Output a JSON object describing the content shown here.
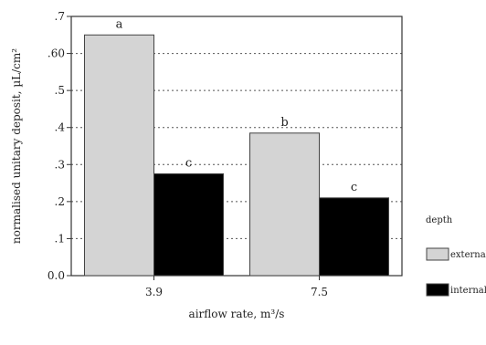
{
  "chart_data": {
    "type": "bar",
    "title": "",
    "xlabel": "airflow rate, m³/s",
    "ylabel": "normalised unitary deposit, µL/cm²",
    "categories": [
      "3.9",
      "7.5"
    ],
    "ylim": [
      0,
      0.7
    ],
    "yticks": [
      {
        "value": 0.0,
        "label": "0.0"
      },
      {
        "value": 0.1,
        "label": ".1"
      },
      {
        "value": 0.2,
        "label": ".2"
      },
      {
        "value": 0.3,
        "label": ".3"
      },
      {
        "value": 0.4,
        "label": ".4"
      },
      {
        "value": 0.5,
        "label": ".5"
      },
      {
        "value": 0.6,
        "label": ".60"
      },
      {
        "value": 0.7,
        "label": ".7"
      }
    ],
    "grid": "horizontal-dotted",
    "legend": {
      "title": "depth",
      "placement": "right",
      "entries": [
        "external",
        "internal"
      ]
    },
    "series": [
      {
        "name": "external",
        "color": "#d4d4d4",
        "values": [
          0.65,
          0.385
        ],
        "labels": [
          "a",
          "b"
        ]
      },
      {
        "name": "internal",
        "color": "#000000",
        "values": [
          0.275,
          0.21
        ],
        "labels": [
          "c",
          "c"
        ]
      }
    ]
  }
}
